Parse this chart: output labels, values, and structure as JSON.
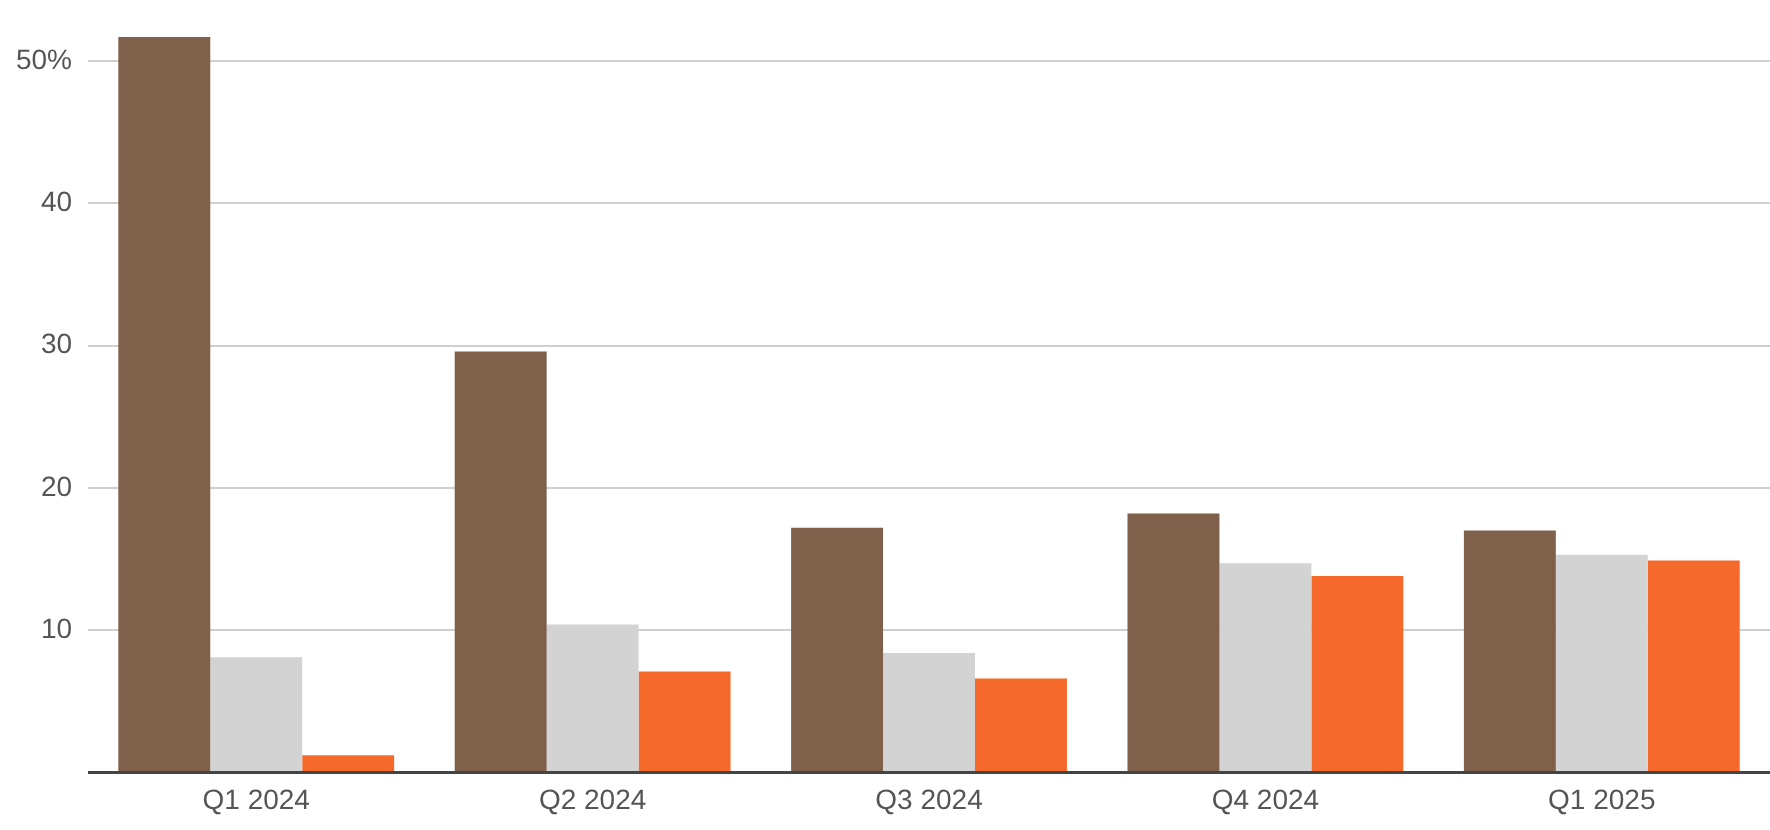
{
  "chart_data": {
    "type": "bar",
    "categories": [
      "Q1 2024",
      "Q2 2024",
      "Q3 2024",
      "Q4 2024",
      "Q1 2025"
    ],
    "series": [
      {
        "color": "#7f604b",
        "values": [
          51.7,
          29.6,
          17.2,
          18.2,
          17.0
        ]
      },
      {
        "color": "#d3d3d3",
        "values": [
          8.1,
          10.4,
          8.4,
          14.7,
          15.3
        ]
      },
      {
        "color": "#f56a2a",
        "values": [
          1.2,
          7.1,
          6.6,
          13.8,
          14.9
        ]
      }
    ],
    "ylim": [
      0,
      52
    ],
    "yticks": [
      {
        "value": 0,
        "label": null
      },
      10,
      20,
      30,
      40,
      {
        "value": 50,
        "label": "50%"
      }
    ],
    "grid": "y",
    "legend": false
  }
}
